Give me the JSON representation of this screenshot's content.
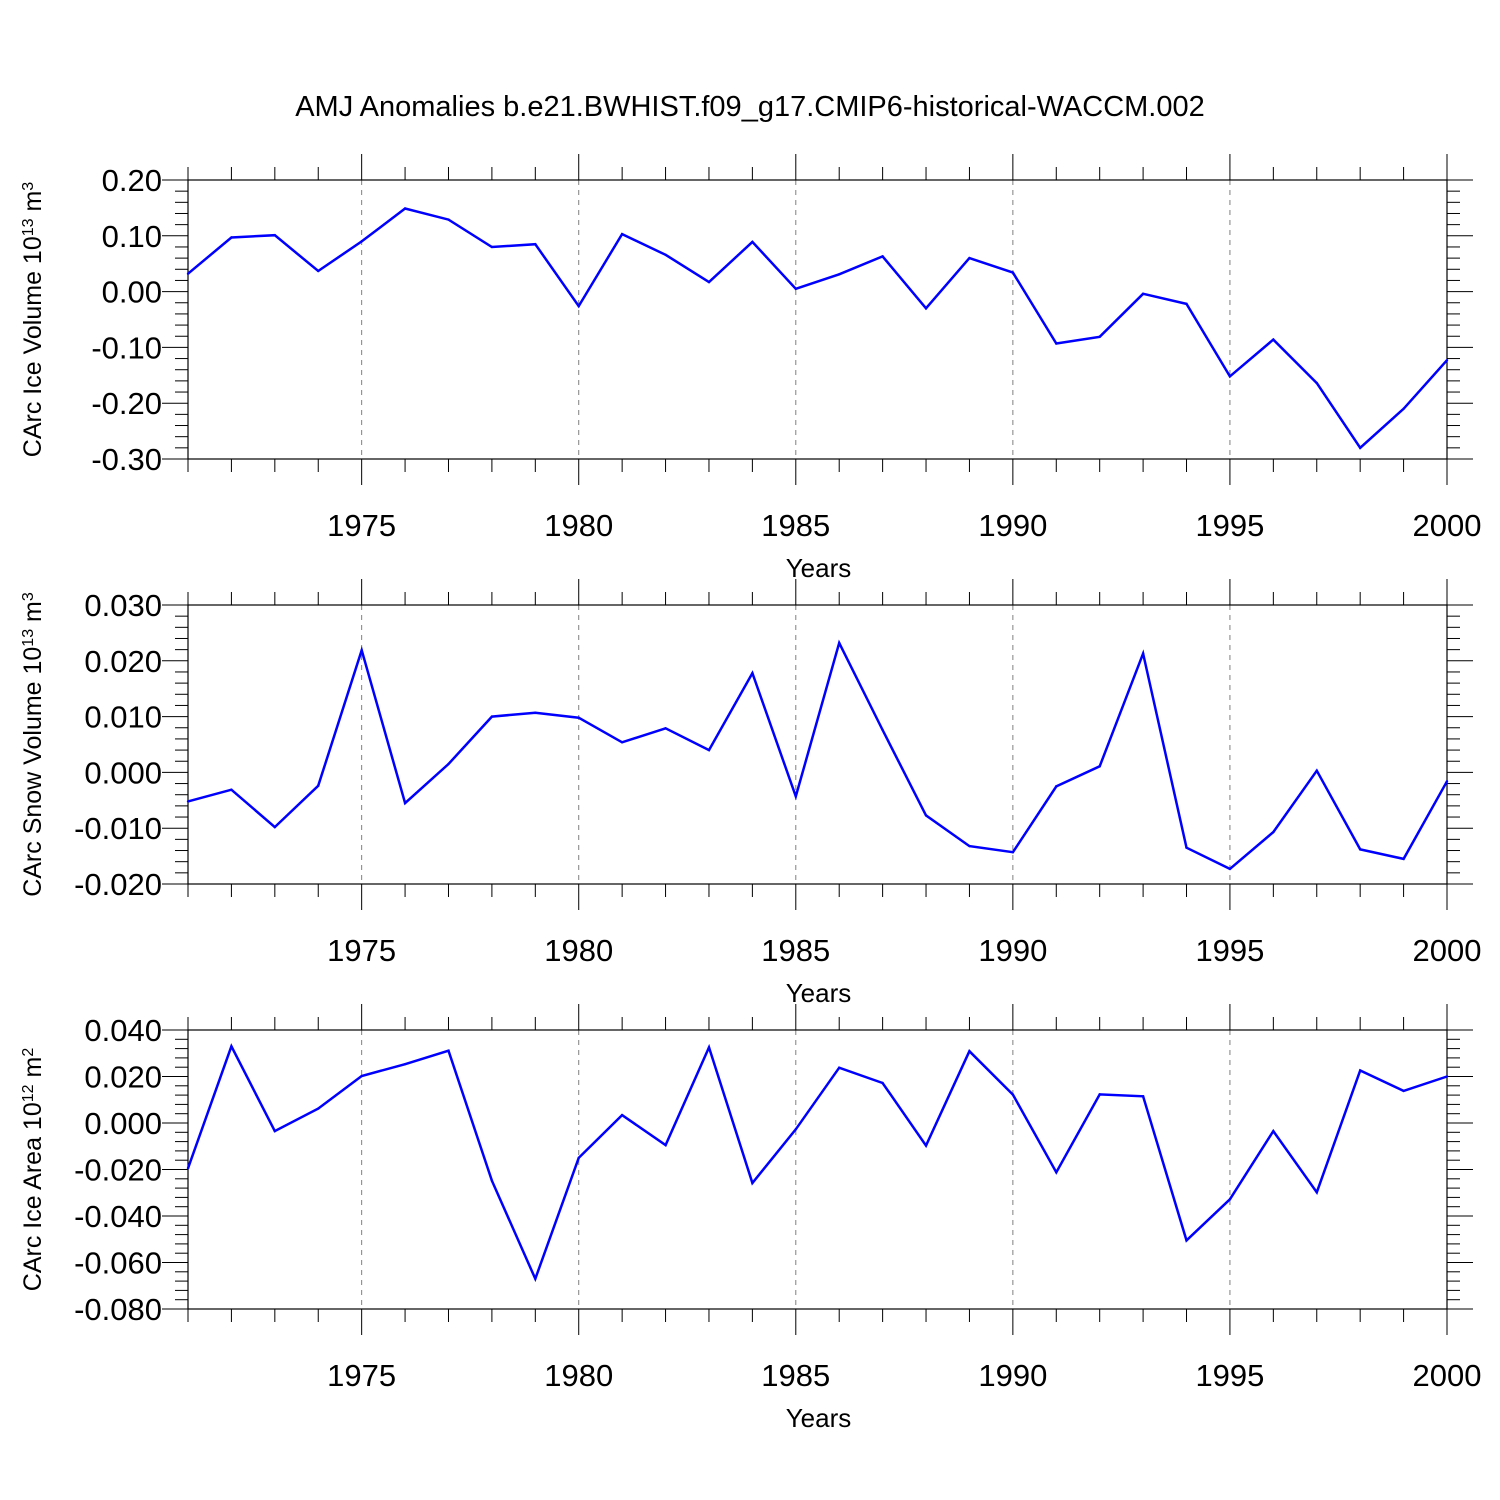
{
  "title": "AMJ Anomalies b.e21.BWHIST.f09_g17.CMIP6-historical-WACCM.002",
  "colors": {
    "series": "#0000ff",
    "axis": "#000000",
    "grid": "#808080"
  },
  "chart_data": [
    {
      "type": "line",
      "ylabel": {
        "text": "CArc Ice Volume 10",
        "exp": "13",
        "unit": " m",
        "unit_exp": "3"
      },
      "xlabel": "Years",
      "xlim": [
        1971,
        2000
      ],
      "ylim": [
        -0.3,
        0.2
      ],
      "yticks": [
        "-0.30",
        "-0.20",
        "-0.10",
        "0.00",
        "0.10",
        "0.20"
      ],
      "xticks": [
        "1975",
        "1980",
        "1985",
        "1990",
        "1995",
        "2000"
      ],
      "grid": "vertical dashed at major x ticks",
      "x": [
        1971,
        1972,
        1973,
        1974,
        1975,
        1976,
        1977,
        1978,
        1979,
        1980,
        1981,
        1982,
        1983,
        1984,
        1985,
        1986,
        1987,
        1988,
        1989,
        1990,
        1991,
        1992,
        1993,
        1994,
        1995,
        1996,
        1997,
        1998,
        1999,
        2000
      ],
      "values": [
        0.032,
        0.097,
        0.101,
        0.037,
        0.09,
        0.149,
        0.129,
        0.08,
        0.085,
        -0.026,
        0.103,
        0.066,
        0.017,
        0.089,
        0.005,
        0.031,
        0.063,
        -0.03,
        0.06,
        0.034,
        -0.093,
        -0.081,
        -0.004,
        -0.022,
        -0.152,
        -0.086,
        -0.164,
        -0.28,
        -0.21,
        -0.123
      ]
    },
    {
      "type": "line",
      "ylabel": {
        "text": "CArc Snow Volume 10",
        "exp": "13",
        "unit": " m",
        "unit_exp": "3"
      },
      "xlabel": "Years",
      "xlim": [
        1971,
        2000
      ],
      "ylim": [
        -0.02,
        0.03
      ],
      "yticks": [
        "-0.020",
        "-0.010",
        "0.000",
        "0.010",
        "0.020",
        "0.030"
      ],
      "xticks": [
        "1975",
        "1980",
        "1985",
        "1990",
        "1995",
        "2000"
      ],
      "grid": "vertical dashed at major x ticks",
      "x": [
        1971,
        1972,
        1973,
        1974,
        1975,
        1976,
        1977,
        1978,
        1979,
        1980,
        1981,
        1982,
        1983,
        1984,
        1985,
        1986,
        1987,
        1988,
        1989,
        1990,
        1991,
        1992,
        1993,
        1994,
        1995,
        1996,
        1997,
        1998,
        1999,
        2000
      ],
      "values": [
        -0.0052,
        -0.0031,
        -0.0098,
        -0.0024,
        0.0219,
        -0.0055,
        0.0015,
        0.01,
        0.0107,
        0.0098,
        0.0054,
        0.0079,
        0.004,
        0.0178,
        -0.0043,
        0.0232,
        0.0076,
        -0.0077,
        -0.0132,
        -0.0143,
        -0.0025,
        0.0011,
        0.0213,
        -0.0135,
        -0.0173,
        -0.0107,
        0.0003,
        -0.0138,
        -0.0155,
        -0.0016
      ]
    },
    {
      "type": "line",
      "ylabel": {
        "text": "CArc Ice Area 10",
        "exp": "12",
        "unit": " m",
        "unit_exp": "2"
      },
      "xlabel": "Years",
      "xlim": [
        1971,
        2000
      ],
      "ylim": [
        -0.08,
        0.04
      ],
      "yticks": [
        "-0.080",
        "-0.060",
        "-0.040",
        "-0.020",
        "0.000",
        "0.020",
        "0.040"
      ],
      "xticks": [
        "1975",
        "1980",
        "1985",
        "1990",
        "1995",
        "2000"
      ],
      "grid": "vertical dashed at major x ticks",
      "x": [
        1971,
        1972,
        1973,
        1974,
        1975,
        1976,
        1977,
        1978,
        1979,
        1980,
        1981,
        1982,
        1983,
        1984,
        1985,
        1986,
        1987,
        1988,
        1989,
        1990,
        1991,
        1992,
        1993,
        1994,
        1995,
        1996,
        1997,
        1998,
        1999,
        2000
      ],
      "values": [
        -0.0195,
        0.033,
        -0.0035,
        0.0062,
        0.0202,
        0.0253,
        0.0311,
        -0.0248,
        -0.067,
        -0.015,
        0.0034,
        -0.0095,
        0.0325,
        -0.0258,
        -0.0027,
        0.0238,
        0.0172,
        -0.0097,
        0.0309,
        0.0122,
        -0.0212,
        0.0123,
        0.0115,
        -0.0505,
        -0.0328,
        -0.0035,
        -0.0298,
        0.0226,
        0.0138,
        0.02
      ]
    }
  ]
}
